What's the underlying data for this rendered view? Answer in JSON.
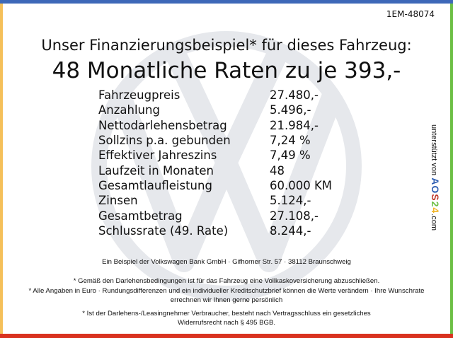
{
  "ref_code": "1EM-48074",
  "headline": "Unser Finanzierungsbeispiel* für dieses Fahrzeug:",
  "rate_line": "48 Monatliche Raten zu je 393,-",
  "rows": [
    {
      "label": "Fahrzeugpreis",
      "value": "27.480,-"
    },
    {
      "label": "Anzahlung",
      "value": "5.496,-"
    },
    {
      "label": "Nettodarlehensbetrag",
      "value": "21.984,-"
    },
    {
      "label": "Sollzins p.a. gebunden",
      "value": "7,24 %"
    },
    {
      "label": "Effektiver Jahreszins",
      "value": "7,49 %"
    },
    {
      "label": "Laufzeit in Monaten",
      "value": "48"
    },
    {
      "label": "Gesamtlaufleistung",
      "value": "60.000 KM"
    },
    {
      "label": "Zinsen",
      "value": "5.124,-"
    },
    {
      "label": "Gesamtbetrag",
      "value": "27.108,-"
    },
    {
      "label": "Schlussrate (49. Rate)",
      "value": "8.244,-"
    }
  ],
  "bank_line": "Ein Beispiel der Volkswagen Bank GmbH · Gifhorner Str. 57 · 38112 Braunschweig",
  "notes": [
    "* Gemäß den Darlehensbedingungen ist für das Fahrzeug eine Vollkaskoversicherung abzuschließen.",
    "* Alle Angaben in Euro · Rundungsdifferenzen und ein individueller Kreditschutzbrief können die Werte verändern · Ihre Wunschrate errechnen wir Ihnen gerne persönlich",
    "* Ist der Darlehens-/Leasingnehmer Verbraucher, besteht nach Vertragsschluss ein gesetzliches Widerrufsrecht nach § 495 BGB."
  ],
  "sponsor": {
    "prefix": "unterstützt von",
    "brand": "AOS24",
    "suffix": ".com"
  },
  "colors": {
    "top": "#3d68b8",
    "left": "#f5c05a",
    "right": "#6cbf45",
    "bottom": "#d9321f",
    "watermark": "#e6e8ec"
  },
  "watermark_icon": "vw-logo"
}
